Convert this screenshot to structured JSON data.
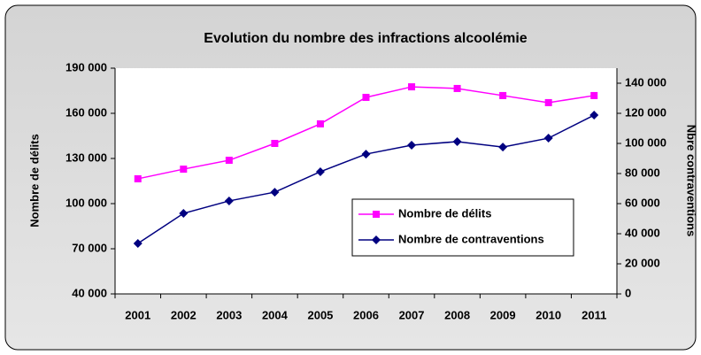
{
  "chart_data": {
    "type": "line",
    "title": "Evolution du nombre des infractions alcoolémie",
    "y_label": "Nombre de délits",
    "y2_label": "Nbre contraventions",
    "categories": [
      "2001",
      "2002",
      "2003",
      "2004",
      "2005",
      "2006",
      "2007",
      "2008",
      "2009",
      "2010",
      "2011"
    ],
    "series": [
      {
        "name": "Nombre de délits",
        "color": "#ff00ff",
        "marker": "square",
        "values": [
          116500,
          122900,
          128800,
          140000,
          153000,
          170600,
          177600,
          176500,
          171800,
          167100,
          171800
        ]
      },
      {
        "name": "Nombre de contraventions",
        "color": "#000080",
        "marker": "diamond",
        "axis": "y2",
        "values": [
          33500,
          53500,
          61800,
          67600,
          81200,
          92900,
          98800,
          101200,
          97600,
          103500,
          118800
        ]
      }
    ],
    "ylim": [
      40000,
      190000
    ],
    "yticks": [
      {
        "value": 40000,
        "label": "40 000"
      },
      {
        "value": 70000,
        "label": "70 000"
      },
      {
        "value": 100000,
        "label": "100 000"
      },
      {
        "value": 130000,
        "label": "130 000"
      },
      {
        "value": 160000,
        "label": "160 000"
      },
      {
        "value": 190000,
        "label": "190 000"
      }
    ],
    "y2lim": [
      0,
      150000
    ],
    "y2ticks": [
      0,
      {
        "value": 20000,
        "label": "20 000"
      },
      {
        "value": 40000,
        "label": "40 000"
      },
      {
        "value": 60000,
        "label": "60 000"
      },
      {
        "value": 80000,
        "label": "80 000"
      },
      {
        "value": 100000,
        "label": "100 000"
      },
      {
        "value": 120000,
        "label": "120 000"
      },
      {
        "value": 140000,
        "label": "140 000"
      }
    ]
  }
}
